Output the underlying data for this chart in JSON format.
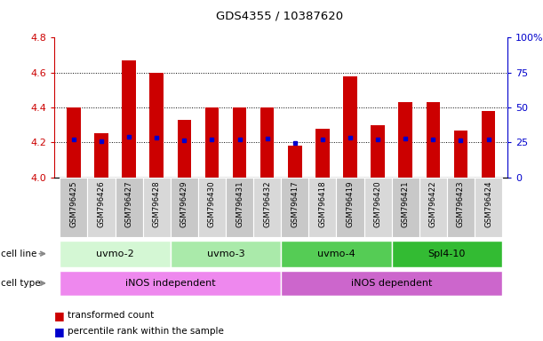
{
  "title": "GDS4355 / 10387620",
  "samples": [
    "GSM796425",
    "GSM796426",
    "GSM796427",
    "GSM796428",
    "GSM796429",
    "GSM796430",
    "GSM796431",
    "GSM796432",
    "GSM796417",
    "GSM796418",
    "GSM796419",
    "GSM796420",
    "GSM796421",
    "GSM796422",
    "GSM796423",
    "GSM796424"
  ],
  "transformed_counts": [
    4.4,
    4.25,
    4.67,
    4.6,
    4.33,
    4.4,
    4.4,
    4.4,
    4.18,
    4.28,
    4.58,
    4.3,
    4.43,
    4.43,
    4.27,
    4.38
  ],
  "percentile_ranks": [
    4.215,
    4.205,
    4.23,
    4.225,
    4.21,
    4.215,
    4.215,
    4.22,
    4.195,
    4.215,
    4.225,
    4.215,
    4.22,
    4.215,
    4.21,
    4.215
  ],
  "ymin": 4.0,
  "ymax": 4.8,
  "y2min": 0,
  "y2max": 100,
  "yticks": [
    4.0,
    4.2,
    4.4,
    4.6,
    4.8
  ],
  "y2ticks": [
    0,
    25,
    50,
    75,
    100
  ],
  "bar_color": "#cc0000",
  "dot_color": "#0000cc",
  "cell_lines": [
    {
      "label": "uvmo-2",
      "start": 0,
      "end": 3,
      "color": "#d4f7d4"
    },
    {
      "label": "uvmo-3",
      "start": 4,
      "end": 7,
      "color": "#aaeaaa"
    },
    {
      "label": "uvmo-4",
      "start": 8,
      "end": 11,
      "color": "#55cc55"
    },
    {
      "label": "Spl4-10",
      "start": 12,
      "end": 15,
      "color": "#33bb33"
    }
  ],
  "cell_types": [
    {
      "label": "iNOS independent",
      "start": 0,
      "end": 7,
      "color": "#ee88ee"
    },
    {
      "label": "iNOS dependent",
      "start": 8,
      "end": 15,
      "color": "#cc66cc"
    }
  ],
  "bar_width": 0.5,
  "background_color": "#ffffff",
  "left_axis_color": "#cc0000",
  "right_axis_color": "#0000cc",
  "tick_bg_color": "#c8c8c8",
  "tick_bg_alt_color": "#d8d8d8",
  "grid_yticks": [
    4.2,
    4.4,
    4.6
  ]
}
